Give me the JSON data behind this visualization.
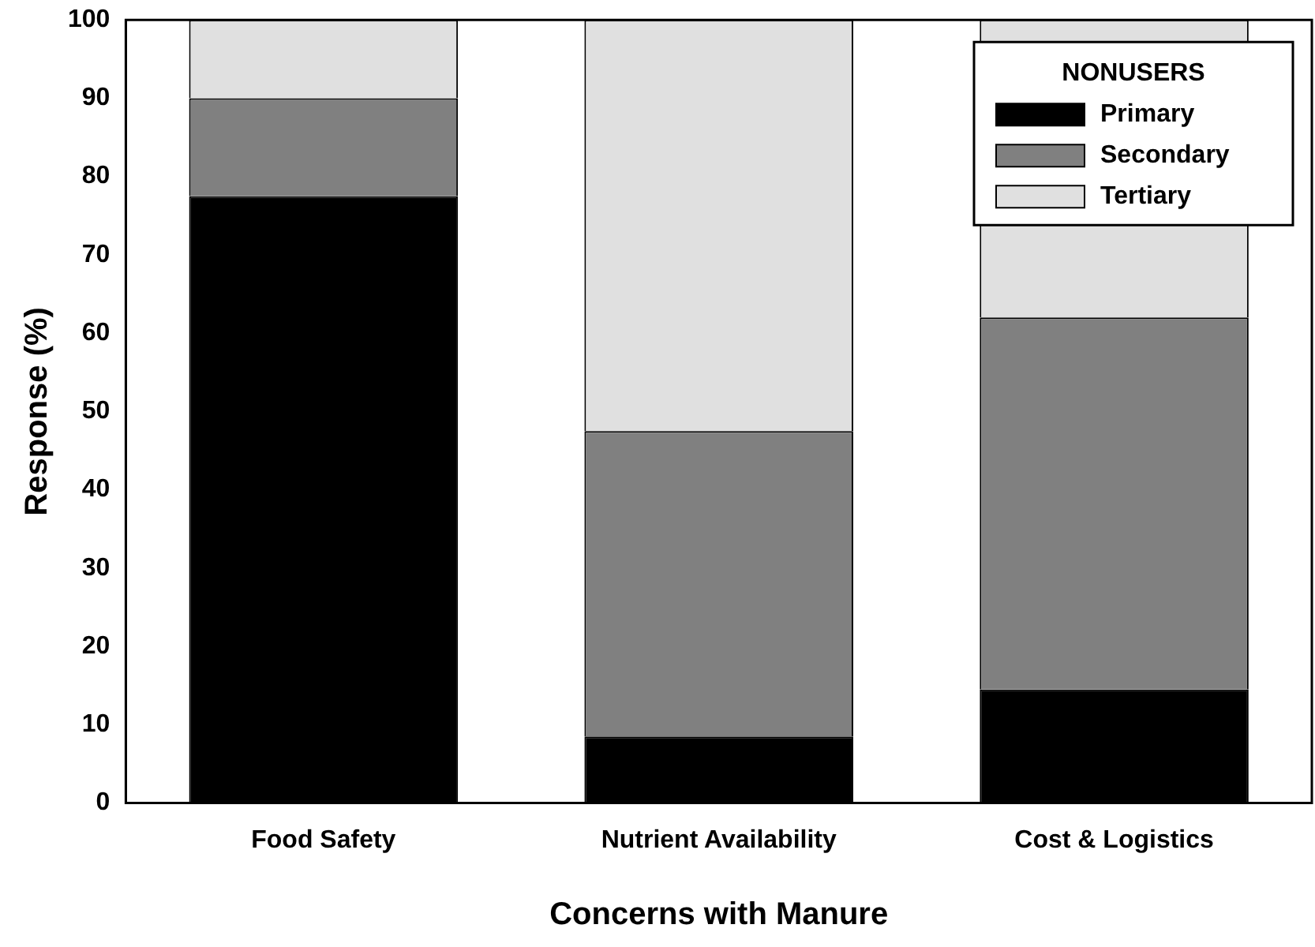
{
  "chart_data": {
    "type": "bar",
    "stacked": true,
    "xlabel": "Concerns with Manure",
    "ylabel": "Response (%)",
    "legend_title": "NONUSERS",
    "legend": "top right",
    "categories": [
      "Food Safety",
      "Nutrient Availability",
      "Cost & Logistics"
    ],
    "ylim": [
      0,
      100
    ],
    "yticks": [
      0,
      10,
      20,
      30,
      40,
      50,
      60,
      70,
      80,
      90,
      100
    ],
    "grid": false,
    "series": [
      {
        "name": "Primary",
        "color": "#000000",
        "values": [
          77.5,
          8.5,
          14.5
        ]
      },
      {
        "name": "Secondary",
        "color": "#808080",
        "values": [
          12.5,
          39,
          47.5
        ]
      },
      {
        "name": "Tertiary",
        "color": "#e0e0e0",
        "values": [
          10,
          52.5,
          38
        ]
      }
    ]
  }
}
